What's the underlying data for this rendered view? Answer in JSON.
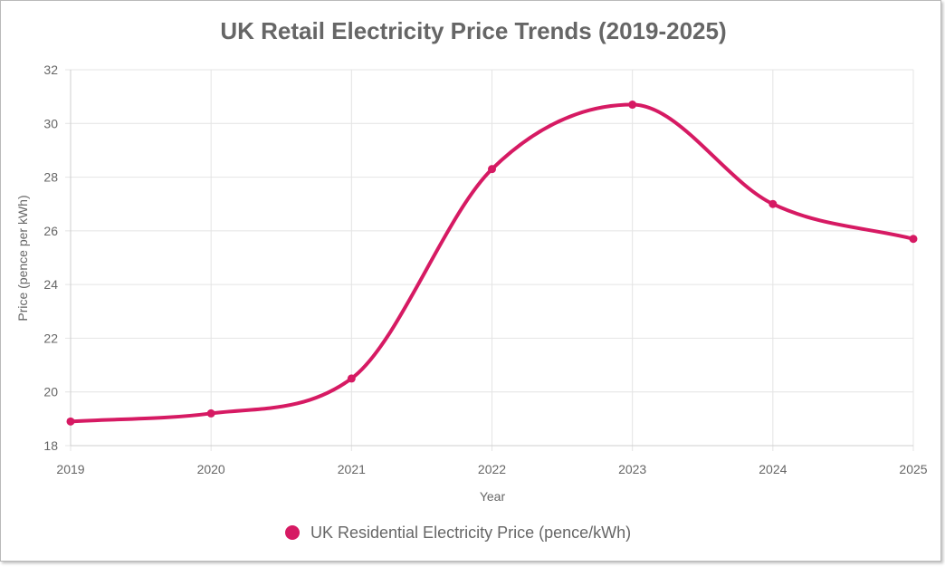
{
  "chart_data": {
    "type": "line",
    "title": "UK Retail Electricity Price Trends (2019-2025)",
    "xlabel": "Year",
    "ylabel": "Price (pence per kWh)",
    "categories": [
      "2019",
      "2020",
      "2021",
      "2022",
      "2023",
      "2024",
      "2025"
    ],
    "series": [
      {
        "name": "UK Residential Electricity Price (pence/kWh)",
        "values": [
          18.9,
          19.2,
          20.5,
          28.3,
          30.7,
          27.0,
          25.7
        ],
        "color": "#d61a63"
      }
    ],
    "ylim": [
      18,
      32
    ],
    "yticks": [
      "18",
      "20",
      "22",
      "24",
      "26",
      "28",
      "30",
      "32"
    ],
    "grid": true,
    "legend_position": "bottom"
  }
}
